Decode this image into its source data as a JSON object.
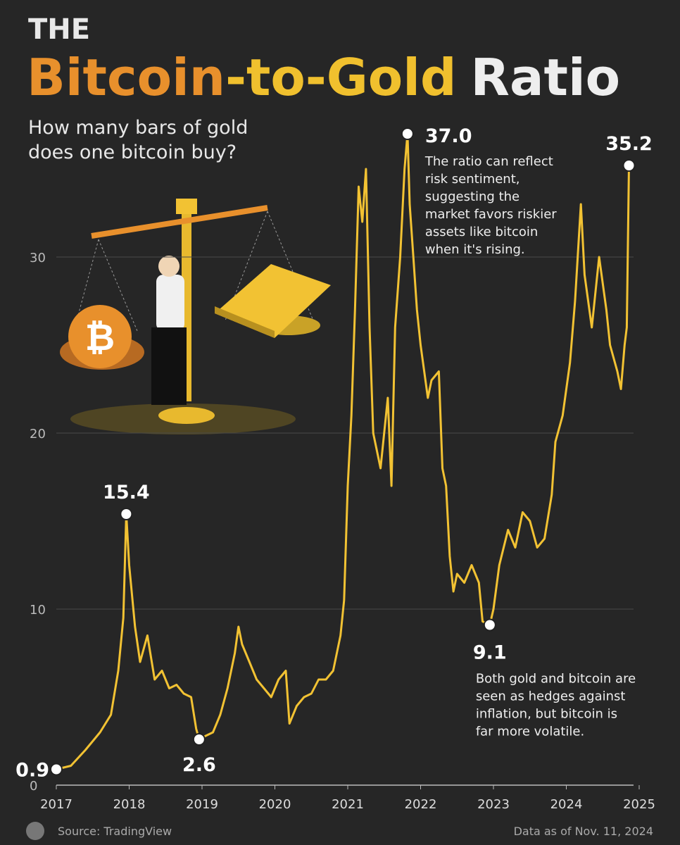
{
  "chart_data": {
    "type": "line",
    "title_prefix": "THE",
    "title_parts": [
      {
        "text": "Bitcoin",
        "color": "#e8902c"
      },
      {
        "text": "-to-Gold",
        "color": "#f0c02e"
      },
      {
        "text": "Ratio",
        "color": "#eeeeee"
      }
    ],
    "subtitle_lines": [
      "How many bars of gold",
      "does one bitcoin buy?"
    ],
    "color": "#f2c233",
    "grid": true,
    "xlim": [
      2017,
      2025
    ],
    "xticks": [
      2017,
      2018,
      2019,
      2020,
      2021,
      2022,
      2023,
      2024,
      2025
    ],
    "ylim": [
      0,
      38
    ],
    "yticks": [
      0,
      10,
      20,
      30
    ],
    "x": [
      2017.0,
      2017.2,
      2017.4,
      2017.6,
      2017.75,
      2017.85,
      2017.92,
      2017.96,
      2018.0,
      2018.08,
      2018.15,
      2018.25,
      2018.35,
      2018.45,
      2018.55,
      2018.65,
      2018.75,
      2018.85,
      2018.92,
      2018.96,
      2019.05,
      2019.15,
      2019.25,
      2019.35,
      2019.45,
      2019.5,
      2019.55,
      2019.65,
      2019.75,
      2019.85,
      2019.95,
      2020.05,
      2020.15,
      2020.2,
      2020.3,
      2020.4,
      2020.5,
      2020.6,
      2020.7,
      2020.8,
      2020.9,
      2020.95,
      2021.0,
      2021.05,
      2021.1,
      2021.15,
      2021.2,
      2021.25,
      2021.3,
      2021.35,
      2021.45,
      2021.55,
      2021.6,
      2021.65,
      2021.72,
      2021.78,
      2021.82,
      2021.85,
      2021.9,
      2021.95,
      2022.0,
      2022.1,
      2022.15,
      2022.25,
      2022.3,
      2022.35,
      2022.4,
      2022.45,
      2022.5,
      2022.6,
      2022.7,
      2022.8,
      2022.85,
      2022.95,
      2023.0,
      2023.08,
      2023.2,
      2023.3,
      2023.4,
      2023.5,
      2023.6,
      2023.7,
      2023.8,
      2023.85,
      2023.95,
      2024.05,
      2024.12,
      2024.2,
      2024.25,
      2024.35,
      2024.45,
      2024.55,
      2024.6,
      2024.7,
      2024.75,
      2024.8,
      2024.83,
      2024.86
    ],
    "values": [
      0.9,
      1.1,
      2.0,
      3.0,
      4.0,
      6.5,
      9.5,
      15.4,
      12.5,
      9.0,
      7.0,
      8.5,
      6.0,
      6.5,
      5.5,
      5.7,
      5.2,
      5.0,
      3.2,
      2.6,
      2.8,
      3.0,
      4.0,
      5.5,
      7.5,
      9.0,
      8.0,
      7.0,
      6.0,
      5.5,
      5.0,
      6.0,
      6.5,
      3.5,
      4.5,
      5.0,
      5.2,
      6.0,
      6.0,
      6.5,
      8.5,
      10.5,
      17.0,
      21.0,
      27.0,
      34.0,
      32.0,
      35.0,
      26.0,
      20.0,
      18.0,
      22.0,
      17.0,
      26.0,
      30.0,
      35.0,
      37.0,
      33.0,
      30.0,
      27.0,
      25.0,
      22.0,
      23.0,
      23.5,
      18.0,
      17.0,
      13.0,
      11.0,
      12.0,
      11.5,
      12.5,
      11.5,
      9.3,
      9.1,
      10.0,
      12.5,
      14.5,
      13.5,
      15.5,
      15.0,
      13.5,
      14.0,
      16.5,
      19.5,
      21.0,
      24.0,
      27.5,
      33.0,
      29.0,
      26.0,
      30.0,
      27.0,
      25.0,
      23.5,
      22.5,
      25.0,
      26.0,
      35.2
    ],
    "annotations": [
      {
        "x": 2017.0,
        "value": 0.9
      },
      {
        "x": 2017.96,
        "value": 15.4
      },
      {
        "x": 2018.96,
        "value": 2.6
      },
      {
        "x": 2021.82,
        "value": 37,
        "label": "37.0",
        "note": [
          "The ratio can reflect",
          "risk sentiment,",
          "suggesting the",
          "market favors riskier",
          "assets like bitcoin",
          "when it's rising."
        ]
      },
      {
        "x": 2022.95,
        "value": 9.1,
        "note": [
          "Both gold and bitcoin are",
          "seen as hedges against",
          "inflation, but bitcoin is",
          "far more volatile."
        ]
      },
      {
        "x": 2024.86,
        "value": 35.2
      }
    ],
    "source": "Source: TradingView",
    "date_note": "Data as of Nov. 11, 2024"
  }
}
